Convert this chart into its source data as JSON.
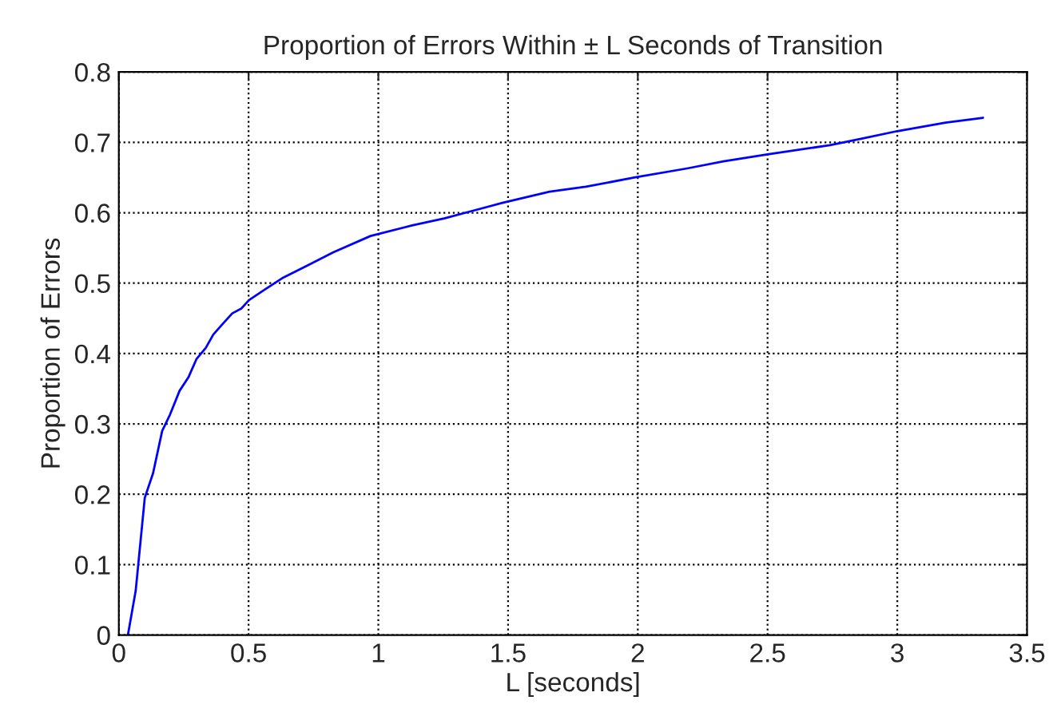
{
  "chart_data": {
    "type": "line",
    "title": "Proportion of Errors Within ± L Seconds of Transition",
    "xlabel": "L [seconds]",
    "ylabel": "Proportion of Errors",
    "series": [
      {
        "color": "#0000ff",
        "x": [
          0.035,
          0.065,
          0.1,
          0.132,
          0.167,
          0.197,
          0.234,
          0.268,
          0.299,
          0.335,
          0.364,
          0.4,
          0.437,
          0.472,
          0.502,
          0.563,
          0.634,
          0.726,
          0.827,
          0.97,
          1.13,
          1.254,
          1.356,
          1.478,
          1.66,
          1.8,
          1.986,
          2.19,
          2.33,
          2.5,
          2.74,
          2.86,
          3.0,
          3.186,
          3.33
        ],
        "values": [
          0,
          0.063,
          0.195,
          0.23,
          0.29,
          0.313,
          0.347,
          0.366,
          0.392,
          0.408,
          0.427,
          0.442,
          0.457,
          0.464,
          0.476,
          0.491,
          0.508,
          0.525,
          0.544,
          0.567,
          0.582,
          0.592,
          0.602,
          0.614,
          0.63,
          0.637,
          0.65,
          0.663,
          0.673,
          0.683,
          0.696,
          0.705,
          0.716,
          0.728,
          0.735
        ]
      }
    ],
    "xlim": [
      0,
      3.5
    ],
    "xticks": [
      0,
      0.5,
      1,
      1.5,
      2,
      2.5,
      3,
      3.5
    ],
    "ylim": [
      0,
      0.8
    ],
    "yticks": [
      0,
      0.1,
      0.2,
      0.3,
      0.4,
      0.5,
      0.6,
      0.7,
      0.8
    ],
    "grid": true,
    "line_style": "solid",
    "marker": "none"
  }
}
